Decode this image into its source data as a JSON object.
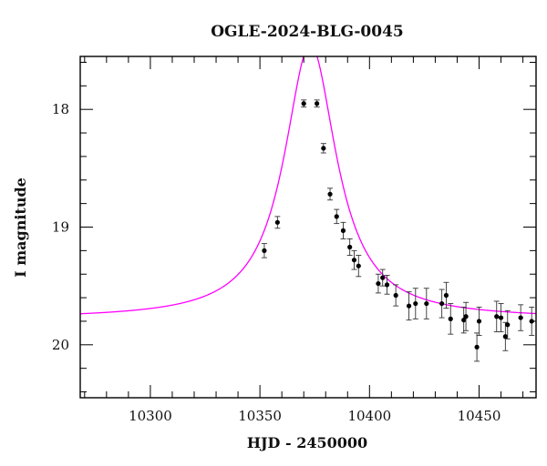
{
  "chart_data": {
    "type": "scatter",
    "title": "OGLE-2024-BLG-0045",
    "xlabel": "HJD - 2450000",
    "ylabel": "I magnitude",
    "xlim": [
      10268,
      10476
    ],
    "ylim": [
      20.45,
      17.55
    ],
    "y_inverted": true,
    "x_ticks": [
      10300,
      10350,
      10400,
      10450
    ],
    "y_ticks": [
      18,
      19,
      20
    ],
    "grid": false,
    "series": [
      {
        "mode": "markers+errorbars",
        "color": "#000000",
        "x": [
          10352,
          10358,
          10370,
          10376,
          10379,
          10382,
          10385,
          10388,
          10391,
          10393,
          10395,
          10404,
          10406,
          10408,
          10412,
          10418,
          10421,
          10426,
          10433,
          10435,
          10437,
          10443,
          10444,
          10449,
          10450,
          10458,
          10460,
          10462,
          10463,
          10469,
          10474
        ],
        "y": [
          19.2,
          18.96,
          17.95,
          17.95,
          18.33,
          18.72,
          18.91,
          19.03,
          19.17,
          19.28,
          19.33,
          19.48,
          19.43,
          19.49,
          19.58,
          19.67,
          19.65,
          19.65,
          19.65,
          19.58,
          19.78,
          19.79,
          19.76,
          20.02,
          19.8,
          19.76,
          19.77,
          19.93,
          19.83,
          19.77,
          19.8
        ],
        "yerr": [
          0.06,
          0.05,
          0.03,
          0.03,
          0.04,
          0.05,
          0.06,
          0.07,
          0.07,
          0.08,
          0.09,
          0.08,
          0.07,
          0.08,
          0.09,
          0.12,
          0.13,
          0.13,
          0.12,
          0.11,
          0.13,
          0.11,
          0.12,
          0.12,
          0.12,
          0.13,
          0.12,
          0.12,
          0.12,
          0.11,
          0.12
        ]
      },
      {
        "mode": "model-curve",
        "color": "#ff00ff",
        "model": {
          "t0": 10373,
          "base_mag": 19.78,
          "amplitude_mag": 2.33,
          "half_width_days": 14.5
        }
      }
    ]
  }
}
